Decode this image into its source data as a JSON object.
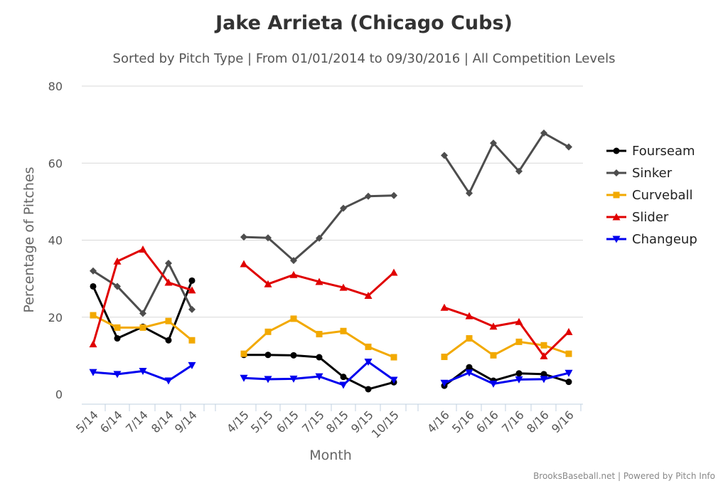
{
  "chart_data": {
    "type": "line",
    "title": "Jake Arrieta (Chicago Cubs)",
    "subtitle": "Sorted by Pitch Type | From 01/01/2014 to 09/30/2016 | All Competition Levels",
    "xlabel": "Month",
    "ylabel": "Percentage of Pitches",
    "ylim": [
      0,
      80
    ],
    "yticks": [
      "0",
      "20",
      "40",
      "60",
      "80"
    ],
    "grid": "horizontal",
    "legend_position": "right",
    "credits": "BrooksBaseball.net | Powered by Pitch Info",
    "groups": [
      {
        "categories": [
          "5/14",
          "6/14",
          "7/14",
          "8/14",
          "9/14"
        ]
      },
      {
        "categories": [
          "4/15",
          "5/15",
          "6/15",
          "7/15",
          "8/15",
          "9/15",
          "10/15"
        ]
      },
      {
        "categories": [
          "4/16",
          "5/16",
          "6/16",
          "7/16",
          "8/16",
          "9/16"
        ]
      }
    ],
    "series": [
      {
        "name": "Fourseam",
        "color": "#000000",
        "marker": "circle",
        "values": [
          [
            28,
            14.5,
            17.5,
            14,
            29.5
          ],
          [
            10.2,
            10.2,
            10.1,
            9.6,
            4.5,
            1.3,
            3.1
          ],
          [
            2.2,
            7,
            3.5,
            5.4,
            5.2,
            3.2
          ]
        ]
      },
      {
        "name": "Sinker",
        "color": "#4d4d4d",
        "marker": "diamond",
        "values": [
          [
            32,
            28,
            21,
            34,
            22
          ],
          [
            40.8,
            40.6,
            34.7,
            40.5,
            48.3,
            51.4,
            51.6
          ],
          [
            62,
            52.2,
            65.2,
            57.9,
            67.8,
            64.2
          ]
        ]
      },
      {
        "name": "Curveball",
        "color": "#f2a900",
        "marker": "square",
        "values": [
          [
            20.5,
            17.3,
            17.3,
            19,
            14
          ],
          [
            10.5,
            16.2,
            19.6,
            15.6,
            16.4,
            12.3,
            9.6
          ],
          [
            9.7,
            14.5,
            10.1,
            13.6,
            12.7,
            10.5
          ]
        ]
      },
      {
        "name": "Slider",
        "color": "#e00000",
        "marker": "triangle-up",
        "values": [
          [
            13,
            34.5,
            37.6,
            29,
            27
          ],
          [
            33.8,
            28.6,
            31,
            29.2,
            27.7,
            25.6,
            31.6
          ],
          [
            22.5,
            20.3,
            17.6,
            18.8,
            9.9,
            16.2
          ]
        ]
      },
      {
        "name": "Changeup",
        "color": "#0000ee",
        "marker": "triangle-down",
        "values": [
          [
            5.7,
            5.2,
            6,
            3.5,
            7.5
          ],
          [
            4.2,
            3.9,
            4,
            4.6,
            2.4,
            8.4,
            3.7
          ],
          [
            2.9,
            5.6,
            2.7,
            3.8,
            3.9,
            5.5
          ]
        ]
      }
    ]
  }
}
